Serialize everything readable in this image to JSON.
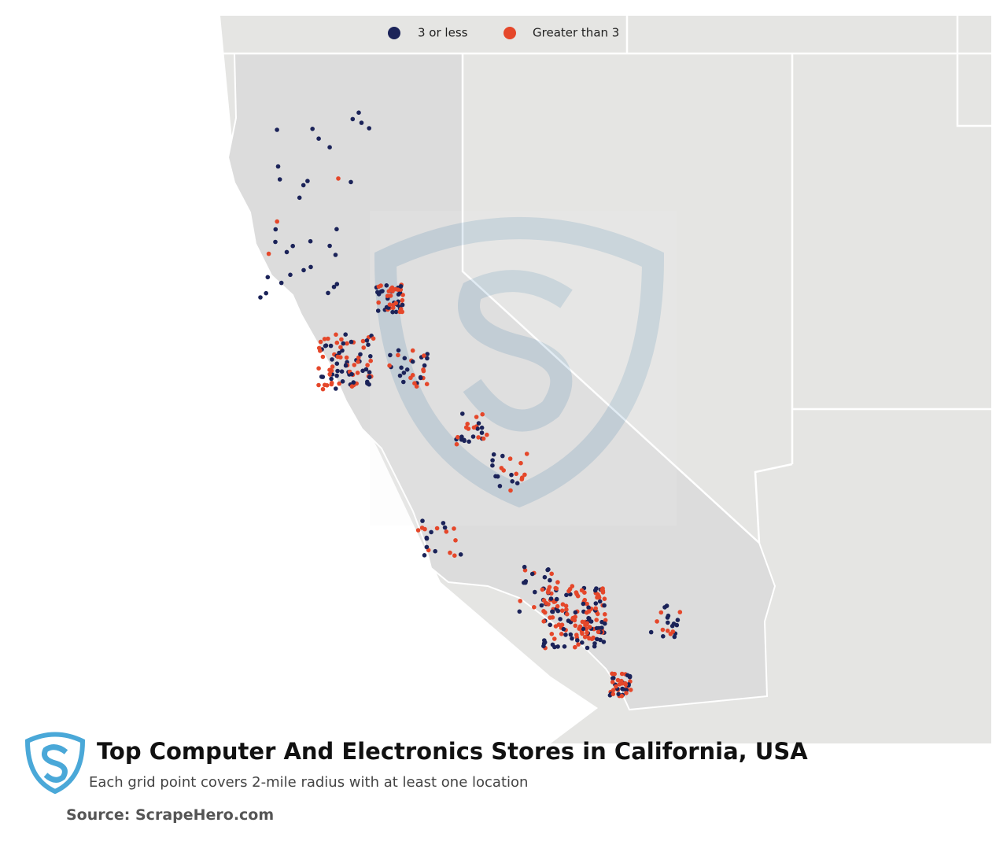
{
  "legend": {
    "items": [
      {
        "label": "3 or less",
        "color": "#1b2359"
      },
      {
        "label": "Greater than 3",
        "color": "#e5472a"
      }
    ]
  },
  "title": "Top Computer And Electronics Stores in California, USA",
  "subtitle": "Each grid point covers 2-mile radius with at least one location",
  "source": "Source: ScrapeHero.com"
}
